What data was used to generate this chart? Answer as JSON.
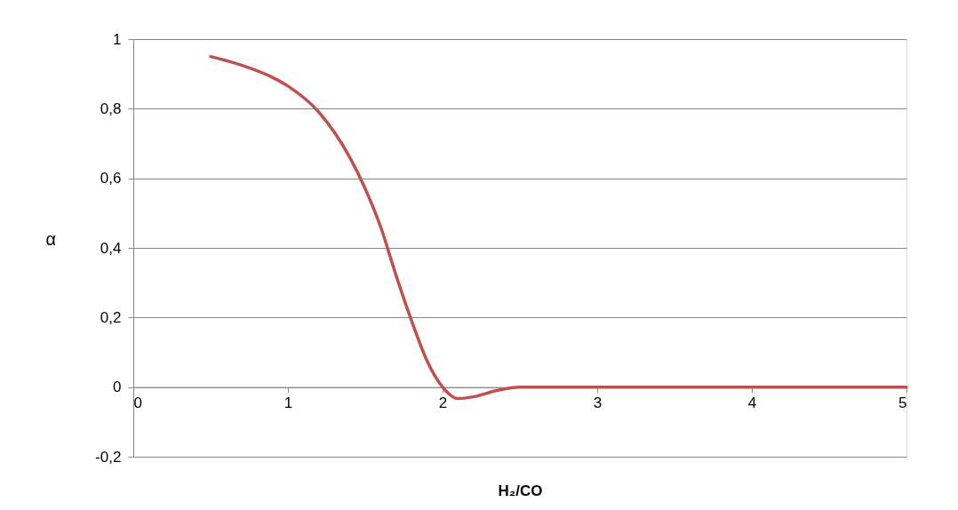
{
  "chart_data": {
    "type": "line",
    "xlabel": "H₂/CO",
    "ylabel": "α",
    "x": [
      0.5,
      0.7,
      0.9,
      1.0,
      1.2,
      1.4,
      1.5,
      1.6,
      1.7,
      1.8,
      1.9,
      2.0,
      2.1,
      2.2,
      2.35,
      2.5,
      3,
      3.5,
      4,
      4.5,
      5
    ],
    "series": [
      {
        "color": "#c0504d",
        "values": [
          0.95,
          0.925,
          0.89,
          0.865,
          0.79,
          0.66,
          0.57,
          0.46,
          0.32,
          0.19,
          0.075,
          0.0,
          -0.033,
          -0.028,
          -0.01,
          0.0,
          0.0,
          0.0,
          0.0,
          0.0,
          0.0
        ]
      }
    ],
    "xlim": [
      0,
      5
    ],
    "xticks": [
      0,
      1,
      2,
      3,
      4,
      5
    ],
    "ylim": [
      -0.2,
      1
    ],
    "yticks": [
      {
        "value": -0.2,
        "label": "-0,2"
      },
      0,
      {
        "value": 0.2,
        "label": "0,2"
      },
      {
        "value": 0.4,
        "label": "0,4"
      },
      {
        "value": 0.6,
        "label": "0,6"
      },
      {
        "value": 0.8,
        "label": "0,8"
      },
      1
    ],
    "grid": "y",
    "marker": "none",
    "line_style": "solid"
  }
}
